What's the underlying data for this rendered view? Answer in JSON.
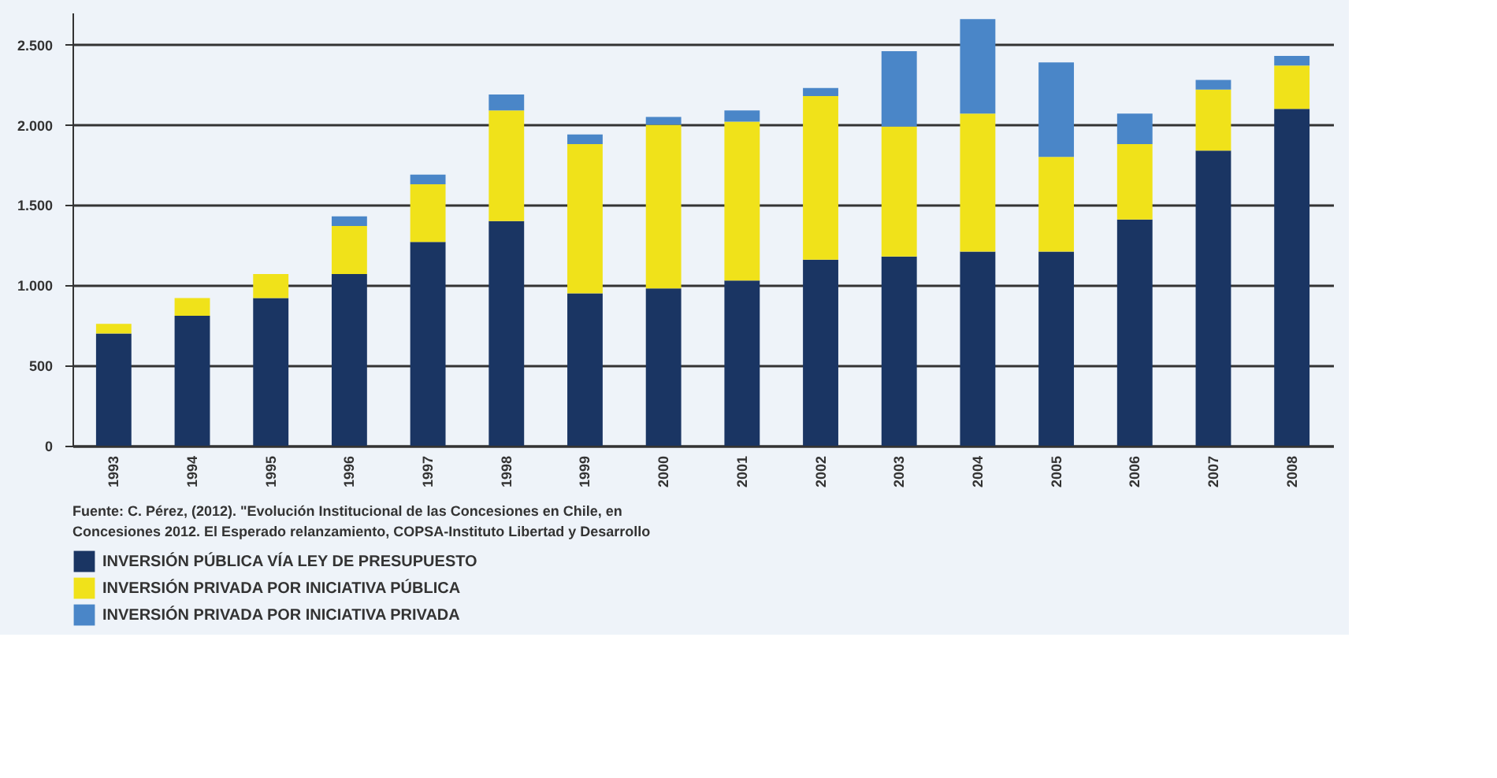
{
  "chart_data": {
    "type": "bar",
    "stacked": true,
    "categories": [
      "1993",
      "1994",
      "1995",
      "1996",
      "1997",
      "1998",
      "1999",
      "2000",
      "2001",
      "2002",
      "2003",
      "2004",
      "2005",
      "2006",
      "2007",
      "2008"
    ],
    "series": [
      {
        "name": "INVERSIÓN PÚBLICA VÍA LEY DE PRESUPUESTO",
        "color": "#1a3563",
        "values": [
          700,
          810,
          920,
          1070,
          1270,
          1400,
          950,
          980,
          1030,
          1160,
          1180,
          1210,
          1210,
          1410,
          1840,
          2100
        ]
      },
      {
        "name": "INVERSIÓN PRIVADA POR INICIATIVA PÚBLICA",
        "color": "#f0e21a",
        "values": [
          60,
          110,
          150,
          300,
          360,
          690,
          930,
          1020,
          990,
          1020,
          810,
          860,
          590,
          470,
          380,
          270
        ]
      },
      {
        "name": "INVERSIÓN PRIVADA POR INICIATIVA PRIVADA",
        "color": "#4a86c8",
        "values": [
          0,
          0,
          0,
          60,
          60,
          100,
          60,
          50,
          70,
          50,
          470,
          590,
          590,
          190,
          60,
          60
        ]
      }
    ],
    "ylim": [
      0,
      2700
    ],
    "yticks": [
      0,
      500,
      {
        "value": 1000,
        "label": "1.000"
      },
      {
        "value": 1500,
        "label": "1.500"
      },
      {
        "value": 2000,
        "label": "2.000"
      },
      {
        "value": 2500,
        "label": "2.500"
      }
    ],
    "grid": "y",
    "legend": "bottom",
    "annotations": [
      "Fuente:  C. Pérez, (2012). \"Evolución Institucional de las Concesiones en Chile, en",
      "             Concesiones 2012. El Esperado relanzamiento, COPSA-Instituto Libertad y Desarrollo"
    ]
  }
}
